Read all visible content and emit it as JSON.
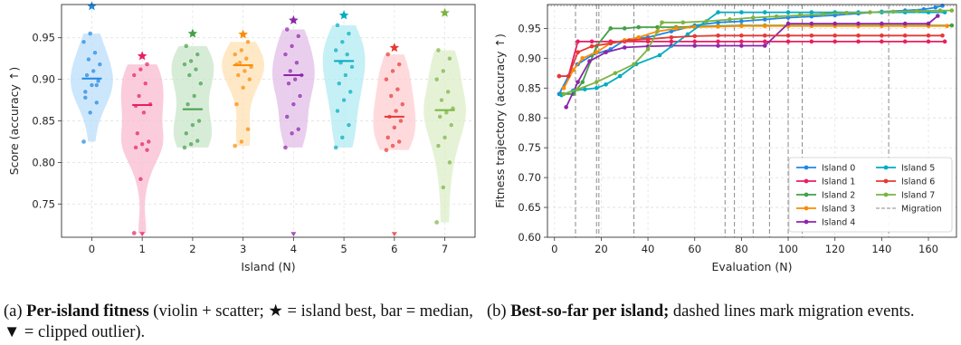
{
  "chart_data": [
    {
      "type": "violin",
      "xlabel": "Island (N)",
      "ylabel": "Score (accuracy ↑)",
      "ylim": [
        0.71,
        0.99
      ],
      "yticks": [
        0.75,
        0.8,
        0.85,
        0.9,
        0.95
      ],
      "ytick_labels": [
        "0.75",
        "0.80",
        "0.85",
        "0.90",
        "0.95"
      ],
      "grid": true,
      "categories": [
        "0",
        "1",
        "2",
        "3",
        "4",
        "5",
        "6",
        "7"
      ],
      "colors": [
        "#1E88E5",
        "#E91E63",
        "#43A047",
        "#FB8C00",
        "#8E24AA",
        "#00ACC1",
        "#E53935",
        "#7CB342"
      ],
      "light_colors": [
        "#BBDEFB",
        "#F8BBD0",
        "#C8E6C9",
        "#FFE0B2",
        "#E1BEE7",
        "#B2EBF2",
        "#FFCDD2",
        "#DCEDC8"
      ],
      "medians": [
        0.901,
        0.869,
        0.864,
        0.917,
        0.905,
        0.922,
        0.855,
        0.863
      ],
      "best": [
        0.988,
        0.928,
        0.955,
        0.954,
        0.971,
        0.977,
        0.938,
        0.98
      ],
      "clipped": [
        null,
        0.713,
        null,
        null,
        0.713,
        null,
        0.713,
        null
      ],
      "points": [
        [
          0.825,
          0.86,
          0.872,
          0.885,
          0.893,
          0.898,
          0.905,
          0.91,
          0.918,
          0.924,
          0.932,
          0.945,
          0.955,
          0.893,
          0.878
        ],
        [
          0.715,
          0.78,
          0.815,
          0.818,
          0.822,
          0.825,
          0.835,
          0.86,
          0.87,
          0.88,
          0.895,
          0.905,
          0.912,
          0.918,
          0.868
        ],
        [
          0.818,
          0.822,
          0.826,
          0.835,
          0.845,
          0.85,
          0.87,
          0.88,
          0.895,
          0.905,
          0.912,
          0.918,
          0.922,
          0.93,
          0.94
        ],
        [
          0.82,
          0.825,
          0.84,
          0.87,
          0.89,
          0.9,
          0.905,
          0.91,
          0.915,
          0.92,
          0.925,
          0.93,
          0.935,
          0.945,
          0.918
        ],
        [
          0.818,
          0.835,
          0.84,
          0.855,
          0.87,
          0.88,
          0.895,
          0.9,
          0.905,
          0.91,
          0.92,
          0.93,
          0.94,
          0.952,
          0.96
        ],
        [
          0.818,
          0.83,
          0.845,
          0.862,
          0.875,
          0.885,
          0.895,
          0.905,
          0.915,
          0.92,
          0.93,
          0.935,
          0.945,
          0.955,
          0.965
        ],
        [
          0.815,
          0.82,
          0.825,
          0.83,
          0.842,
          0.85,
          0.855,
          0.862,
          0.87,
          0.88,
          0.888,
          0.9,
          0.91,
          0.918,
          0.93
        ],
        [
          0.728,
          0.77,
          0.8,
          0.82,
          0.83,
          0.845,
          0.855,
          0.86,
          0.865,
          0.875,
          0.885,
          0.9,
          0.91,
          0.925,
          0.935
        ]
      ]
    },
    {
      "type": "line",
      "xlabel": "Evaluation (N)",
      "ylabel": "Fitness trajectory (accuracy ↑)",
      "xlim": [
        -3,
        172
      ],
      "ylim": [
        0.6,
        0.99
      ],
      "xticks": [
        0,
        20,
        40,
        60,
        80,
        100,
        120,
        140,
        160
      ],
      "xtick_labels": [
        "0",
        "20",
        "40",
        "60",
        "80",
        "100",
        "120",
        "140",
        "160"
      ],
      "yticks": [
        0.6,
        0.65,
        0.7,
        0.75,
        0.8,
        0.85,
        0.9,
        0.95
      ],
      "ytick_labels": [
        "0.60",
        "0.65",
        "0.70",
        "0.75",
        "0.80",
        "0.85",
        "0.90",
        "0.95"
      ],
      "grid": true,
      "legend_position": "lower-right",
      "migration_label": "Migration",
      "migrations": [
        9,
        18,
        19,
        34,
        73,
        77,
        85,
        92,
        100,
        106,
        143
      ],
      "top_reference": 0.988,
      "series": [
        {
          "name": "Island 0",
          "color": "#1E88E5",
          "x": [
            2,
            6,
            10,
            16,
            24,
            30,
            40,
            50,
            60,
            70,
            80,
            90,
            100,
            110,
            120,
            130,
            140,
            150,
            158,
            163,
            166
          ],
          "y": [
            0.84,
            0.87,
            0.89,
            0.905,
            0.915,
            0.93,
            0.935,
            0.945,
            0.955,
            0.96,
            0.962,
            0.965,
            0.968,
            0.97,
            0.972,
            0.975,
            0.978,
            0.98,
            0.982,
            0.985,
            0.988
          ]
        },
        {
          "name": "Island 1",
          "color": "#E91E63",
          "x": [
            2,
            6,
            10,
            16,
            24,
            30,
            40,
            50,
            60,
            70,
            80,
            90,
            100,
            110,
            120,
            130,
            140,
            150,
            160,
            167
          ],
          "y": [
            0.87,
            0.87,
            0.928,
            0.928,
            0.928,
            0.928,
            0.928,
            0.928,
            0.928,
            0.928,
            0.928,
            0.928,
            0.928,
            0.928,
            0.928,
            0.928,
            0.928,
            0.928,
            0.928,
            0.928
          ]
        },
        {
          "name": "Island 2",
          "color": "#43A047",
          "x": [
            3,
            8,
            12,
            18,
            24,
            30,
            36,
            44,
            52,
            60,
            70,
            80,
            90,
            100,
            110,
            120,
            130,
            140,
            150,
            160,
            170
          ],
          "y": [
            0.84,
            0.84,
            0.86,
            0.92,
            0.95,
            0.95,
            0.952,
            0.952,
            0.952,
            0.953,
            0.954,
            0.955,
            0.955,
            0.955,
            0.955,
            0.955,
            0.955,
            0.955,
            0.955,
            0.955,
            0.955
          ]
        },
        {
          "name": "Island 3",
          "color": "#FB8C00",
          "x": [
            4,
            8,
            12,
            18,
            24,
            30,
            36,
            44,
            52,
            60,
            70,
            80,
            90,
            100,
            110,
            120,
            130,
            140,
            150,
            160,
            168
          ],
          "y": [
            0.85,
            0.88,
            0.9,
            0.91,
            0.925,
            0.93,
            0.935,
            0.945,
            0.95,
            0.952,
            0.953,
            0.954,
            0.954,
            0.954,
            0.954,
            0.954,
            0.954,
            0.954,
            0.954,
            0.954,
            0.954
          ]
        },
        {
          "name": "Island 4",
          "color": "#8E24AA",
          "x": [
            5,
            10,
            15,
            22,
            30,
            40,
            50,
            60,
            70,
            80,
            90,
            100,
            110,
            120,
            130,
            140,
            150,
            160,
            164
          ],
          "y": [
            0.818,
            0.86,
            0.895,
            0.91,
            0.918,
            0.92,
            0.921,
            0.921,
            0.921,
            0.921,
            0.921,
            0.958,
            0.958,
            0.958,
            0.958,
            0.958,
            0.958,
            0.958,
            0.971
          ]
        },
        {
          "name": "Island 5",
          "color": "#00ACC1",
          "x": [
            3,
            8,
            13,
            18,
            22,
            28,
            35,
            45,
            57,
            70,
            80,
            90,
            100,
            110,
            120,
            130,
            140,
            150,
            160,
            167
          ],
          "y": [
            0.838,
            0.846,
            0.848,
            0.85,
            0.856,
            0.87,
            0.89,
            0.905,
            0.94,
            0.977,
            0.977,
            0.977,
            0.977,
            0.977,
            0.977,
            0.977,
            0.977,
            0.977,
            0.977,
            0.977
          ]
        },
        {
          "name": "Island 6",
          "color": "#E53935",
          "x": [
            2,
            6,
            10,
            16,
            24,
            32,
            40,
            50,
            60,
            70,
            80,
            90,
            100,
            110,
            120,
            130,
            140,
            150,
            160,
            166
          ],
          "y": [
            0.87,
            0.87,
            0.91,
            0.92,
            0.925,
            0.93,
            0.932,
            0.935,
            0.937,
            0.938,
            0.938,
            0.938,
            0.938,
            0.938,
            0.938,
            0.938,
            0.938,
            0.938,
            0.938,
            0.938
          ]
        },
        {
          "name": "Island 7",
          "color": "#7CB342",
          "x": [
            4,
            10,
            18,
            26,
            34,
            40,
            46,
            55,
            65,
            75,
            85,
            95,
            105,
            115,
            125,
            135,
            145,
            155,
            165,
            170
          ],
          "y": [
            0.84,
            0.848,
            0.86,
            0.875,
            0.89,
            0.915,
            0.96,
            0.96,
            0.962,
            0.965,
            0.968,
            0.97,
            0.972,
            0.974,
            0.976,
            0.977,
            0.978,
            0.979,
            0.98,
            0.98
          ]
        }
      ]
    }
  ],
  "captions": {
    "a_label": "(a) ",
    "a_bold": "Per-island fitness",
    "a_rest": " (violin + scatter; ★ = island best, bar = median, ▼ = clipped outlier).",
    "b_label": "(b) ",
    "b_bold": "Best-so-far per island;",
    "b_rest": " dashed lines mark migration events."
  }
}
